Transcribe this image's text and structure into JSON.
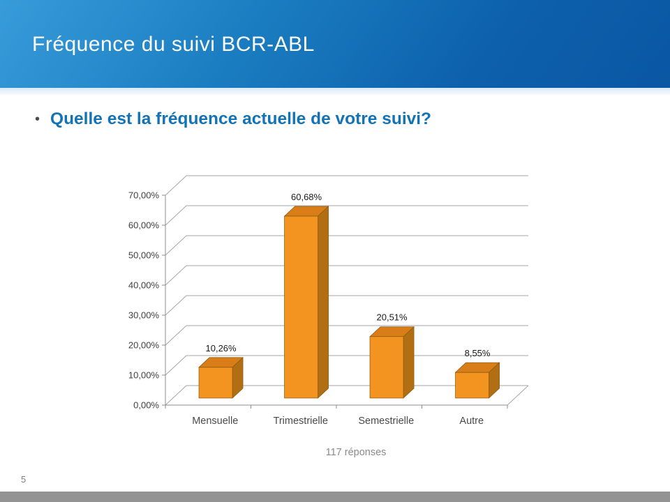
{
  "slide": {
    "title": "Fréquence du suivi BCR-ABL",
    "bullet_glyph": "•",
    "question": "Quelle est la fréquence actuelle de votre suivi?",
    "page_number": "5"
  },
  "colors": {
    "header_gradient_start": "#379CDA",
    "header_gradient_end": "#0A57A4",
    "title_text": "#FDFDFD",
    "question_text": "#1273B6",
    "bar_front": "#F2941F",
    "bar_top": "#D97D18",
    "bar_side": "#B26E12",
    "bar_outline": "#8C5A0D",
    "gridline": "#A6A6A6",
    "axis": "#8C8C8C",
    "tick_text": "#3F3F3F",
    "data_label_text": "#1A1A1A",
    "category_text": "#4A4A4A",
    "caption_text": "#8A8A8A",
    "bottom_bar": "#939393"
  },
  "chart_data": {
    "type": "bar",
    "style": "3d-column",
    "title": "",
    "xlabel": "",
    "ylabel": "",
    "categories": [
      "Mensuelle",
      "Trimestrielle",
      "Semestrielle",
      "Autre"
    ],
    "values": [
      10.26,
      60.68,
      20.51,
      8.55
    ],
    "data_labels": [
      "10,26%",
      "60,68%",
      "20,51%",
      "8,55%"
    ],
    "y_tick_labels": [
      "0,00%",
      "10,00%",
      "20,00%",
      "30,00%",
      "40,00%",
      "50,00%",
      "60,00%",
      "70,00%"
    ],
    "y_tick_values": [
      0,
      10,
      20,
      30,
      40,
      50,
      60,
      70
    ],
    "ylim": [
      0,
      70
    ],
    "grid": true,
    "legend": false,
    "note": "117 réponses"
  }
}
